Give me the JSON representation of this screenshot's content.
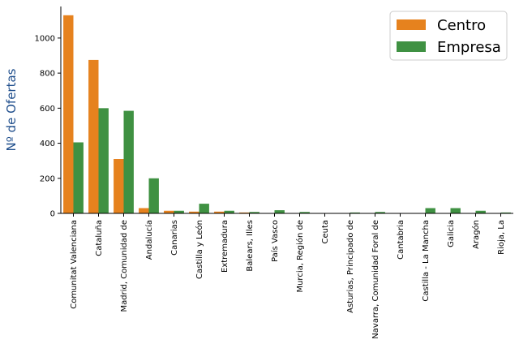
{
  "chart_data": {
    "type": "bar",
    "ylabel": "Nº de Ofertas",
    "xlabel": "",
    "ylim": [
      0,
      1180
    ],
    "yticks": [
      0,
      200,
      400,
      600,
      800,
      1000
    ],
    "grid": false,
    "legend_position": "top-right",
    "categories": [
      "Comunitat Valenciana",
      "Cataluña",
      "Madrid, Comunidad de",
      "Andalucía",
      "Canarias",
      "Castilla y León",
      "Extremadura",
      "Balears, Illes",
      "País Vasco",
      "Murcia, Región de",
      "Ceuta",
      "Asturias, Principado de",
      "Navarra, Comunidad Foral de",
      "Cantabria",
      "Castilla - La Mancha",
      "Galicia",
      "Aragón",
      "Rioja, La"
    ],
    "series": [
      {
        "name": "Centro",
        "color": "#e6821e",
        "values": [
          1130,
          875,
          310,
          30,
          15,
          10,
          10,
          5,
          0,
          0,
          0,
          0,
          0,
          0,
          0,
          0,
          0,
          0
        ]
      },
      {
        "name": "Empresa",
        "color": "#3f9142",
        "values": [
          405,
          600,
          585,
          200,
          15,
          55,
          15,
          8,
          18,
          8,
          0,
          5,
          8,
          0,
          30,
          30,
          15,
          5
        ]
      }
    ]
  }
}
